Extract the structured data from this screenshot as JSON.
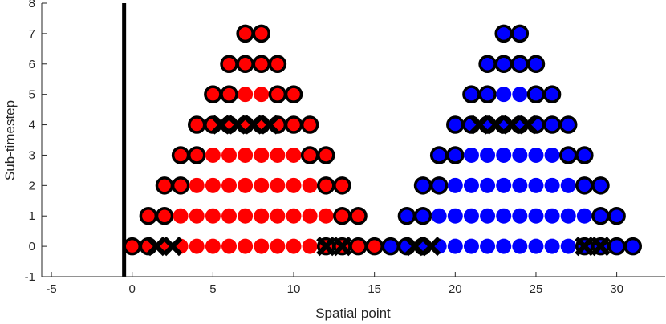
{
  "chart_data": {
    "type": "scatter",
    "xlabel": "Spatial point",
    "ylabel": "Sub-timestep",
    "xlim": [
      -5.6,
      33
    ],
    "ylim": [
      -1,
      8
    ],
    "xticks": [
      -5,
      0,
      5,
      10,
      15,
      20,
      25,
      30
    ],
    "yticks": [
      -1,
      0,
      1,
      2,
      3,
      4,
      5,
      6,
      7,
      8
    ],
    "grid": false,
    "vertical_line": {
      "x": -0.5,
      "color": "#000000"
    },
    "series": [
      {
        "color": "#ff0000",
        "levels": [
          {
            "y": 0,
            "x_start": 0,
            "x_end": 15,
            "outlined": [
              0,
              1,
              12,
              13,
              14,
              15
            ],
            "crossed": [
              1.5,
              2.5,
              12,
              13
            ]
          },
          {
            "y": 1,
            "x_start": 1,
            "x_end": 14,
            "outlined": [
              1,
              2,
              13,
              14
            ],
            "crossed": []
          },
          {
            "y": 2,
            "x_start": 2,
            "x_end": 13,
            "outlined": [
              2,
              3,
              12,
              13
            ],
            "crossed": []
          },
          {
            "y": 3,
            "x_start": 3,
            "x_end": 12,
            "outlined": [
              3,
              4,
              11,
              12
            ],
            "crossed": []
          },
          {
            "y": 4,
            "x_start": 4,
            "x_end": 11,
            "outlined": [
              4,
              5,
              6,
              7,
              8,
              9,
              10,
              11
            ],
            "crossed": [
              5.5,
              6.5,
              7.5,
              8.5
            ]
          },
          {
            "y": 5,
            "x_start": 5,
            "x_end": 10,
            "outlined": [
              5,
              6,
              9,
              10
            ],
            "crossed": []
          },
          {
            "y": 6,
            "x_start": 6,
            "x_end": 9,
            "outlined": [
              6,
              7,
              8,
              9
            ],
            "crossed": []
          },
          {
            "y": 7,
            "x_start": 7,
            "x_end": 8,
            "outlined": [
              7,
              8
            ],
            "crossed": []
          }
        ]
      },
      {
        "color": "#0000ff",
        "levels": [
          {
            "y": 0,
            "x_start": 16,
            "x_end": 31,
            "outlined": [
              16,
              17,
              18,
              28,
              29,
              30,
              31
            ],
            "crossed": [
              17.5,
              18.5,
              28,
              29
            ]
          },
          {
            "y": 1,
            "x_start": 17,
            "x_end": 30,
            "outlined": [
              17,
              18,
              29,
              30
            ],
            "crossed": []
          },
          {
            "y": 2,
            "x_start": 18,
            "x_end": 29,
            "outlined": [
              18,
              19,
              28,
              29
            ],
            "crossed": []
          },
          {
            "y": 3,
            "x_start": 19,
            "x_end": 28,
            "outlined": [
              19,
              20,
              27,
              28
            ],
            "crossed": []
          },
          {
            "y": 4,
            "x_start": 20,
            "x_end": 27,
            "outlined": [
              20,
              21,
              22,
              23,
              24,
              25,
              26,
              27
            ],
            "crossed": [
              21.5,
              22.5,
              23.5,
              24.5
            ]
          },
          {
            "y": 5,
            "x_start": 21,
            "x_end": 26,
            "outlined": [
              21,
              22,
              25,
              26
            ],
            "crossed": []
          },
          {
            "y": 6,
            "x_start": 22,
            "x_end": 25,
            "outlined": [
              22,
              23,
              24,
              25
            ],
            "crossed": []
          },
          {
            "y": 7,
            "x_start": 23,
            "x_end": 24,
            "outlined": [
              23,
              24
            ],
            "crossed": []
          }
        ]
      }
    ]
  }
}
